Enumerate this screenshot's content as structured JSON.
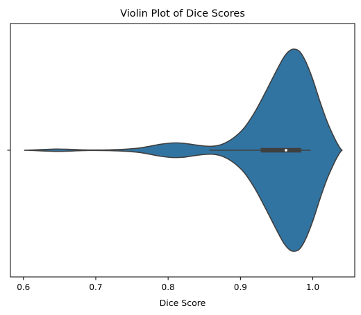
{
  "chart_data": {
    "type": "violin",
    "title": "Violin Plot of Dice Scores",
    "xlabel": "Dice Score",
    "ylabel": "",
    "xlim": [
      0.582,
      1.058
    ],
    "xticks": [
      0.6,
      0.7,
      0.8,
      0.9,
      1.0
    ],
    "xtick_labels": [
      "0.6",
      "0.7",
      "0.8",
      "0.9",
      "1.0"
    ],
    "yticks": [
      ""
    ],
    "grid": false,
    "legend": "none",
    "fill_color": "#3274a1",
    "line_color": "#3f3f3f",
    "density_profile": [
      {
        "x": 0.603,
        "w": 0.0
      },
      {
        "x": 0.615,
        "w": 0.003
      },
      {
        "x": 0.63,
        "w": 0.008
      },
      {
        "x": 0.645,
        "w": 0.012
      },
      {
        "x": 0.66,
        "w": 0.01
      },
      {
        "x": 0.68,
        "w": 0.004
      },
      {
        "x": 0.7,
        "w": 0.002
      },
      {
        "x": 0.72,
        "w": 0.004
      },
      {
        "x": 0.74,
        "w": 0.01
      },
      {
        "x": 0.76,
        "w": 0.022
      },
      {
        "x": 0.775,
        "w": 0.04
      },
      {
        "x": 0.79,
        "w": 0.06
      },
      {
        "x": 0.805,
        "w": 0.072
      },
      {
        "x": 0.82,
        "w": 0.07
      },
      {
        "x": 0.835,
        "w": 0.055
      },
      {
        "x": 0.85,
        "w": 0.042
      },
      {
        "x": 0.862,
        "w": 0.04
      },
      {
        "x": 0.875,
        "w": 0.06
      },
      {
        "x": 0.89,
        "w": 0.12
      },
      {
        "x": 0.905,
        "w": 0.22
      },
      {
        "x": 0.92,
        "w": 0.38
      },
      {
        "x": 0.935,
        "w": 0.58
      },
      {
        "x": 0.95,
        "w": 0.79
      },
      {
        "x": 0.96,
        "w": 0.92
      },
      {
        "x": 0.968,
        "w": 0.985
      },
      {
        "x": 0.975,
        "w": 1.0
      },
      {
        "x": 0.982,
        "w": 0.975
      },
      {
        "x": 0.99,
        "w": 0.88
      },
      {
        "x": 1.0,
        "w": 0.7
      },
      {
        "x": 1.01,
        "w": 0.48
      },
      {
        "x": 1.02,
        "w": 0.28
      },
      {
        "x": 1.03,
        "w": 0.12
      },
      {
        "x": 1.036,
        "w": 0.04
      },
      {
        "x": 1.04,
        "w": 0.0
      }
    ],
    "box": {
      "whisker_low": 0.857,
      "q1": 0.928,
      "median": 0.963,
      "q3": 0.984,
      "whisker_high": 0.997
    }
  }
}
